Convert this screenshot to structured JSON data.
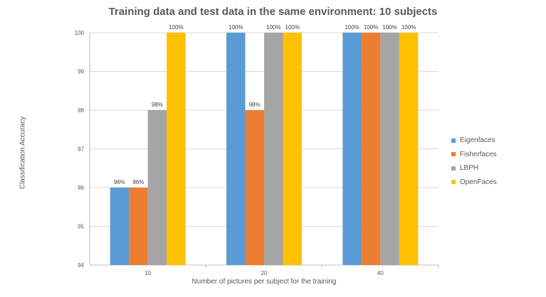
{
  "chart_data": {
    "type": "bar",
    "title": "Training data and test data in the same environment: 10 subjects",
    "xlabel": "Number of pictures per subject for the training",
    "ylabel": "Classification Accuracy",
    "categories": [
      "10",
      "20",
      "40"
    ],
    "ylim": [
      94,
      100
    ],
    "yticks": [
      94,
      95,
      96,
      97,
      98,
      99,
      100
    ],
    "grid": true,
    "legend_position": "right",
    "series": [
      {
        "name": "Eigenfaces",
        "values": [
          96,
          100,
          100
        ],
        "labels": [
          "96%",
          "100%",
          "100%"
        ],
        "color": "#5B9BD5"
      },
      {
        "name": "Fisherfaces",
        "values": [
          96,
          98,
          100
        ],
        "labels": [
          "96%",
          "98%",
          "100%"
        ],
        "color": "#ED7D31"
      },
      {
        "name": "LBPH",
        "values": [
          98,
          100,
          100
        ],
        "labels": [
          "98%",
          "100%",
          "100%"
        ],
        "color": "#A5A5A5"
      },
      {
        "name": "OpenFaces",
        "values": [
          100,
          100,
          100
        ],
        "labels": [
          "100%",
          "100%",
          "100%"
        ],
        "color": "#FFC000"
      }
    ]
  }
}
